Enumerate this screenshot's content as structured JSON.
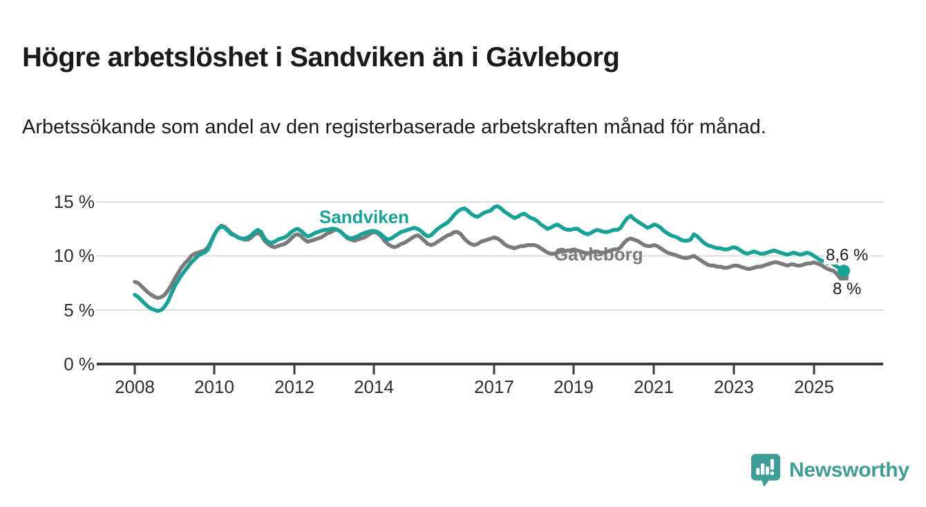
{
  "header": {
    "title": "Högre arbetslöshet i Sandviken än i Gävleborg",
    "subtitle": "Arbetssökande som andel av den registerbaserade arbetskraften månad för månad."
  },
  "chart_data": {
    "type": "line",
    "unit": "%",
    "frequency": "monthly",
    "x_start": "2008-01",
    "x_end": "2025-10",
    "ylim": [
      0,
      15
    ],
    "grid": "horizontal",
    "y_tick_labels": [
      "15 %",
      "10 %",
      "5 %",
      "0 %"
    ],
    "y_tick_values": [
      15,
      10,
      5,
      0
    ],
    "x_tick_labels": [
      "2008",
      "2010",
      "2012",
      "2014",
      "2017",
      "2019",
      "2021",
      "2023",
      "2025"
    ],
    "x_tick_values": [
      2008,
      2010,
      2012,
      2014,
      2017,
      2019,
      2021,
      2023,
      2025
    ],
    "series": [
      {
        "name": "Gävleborg",
        "color": "#7a7a7a",
        "end_label": "8 %",
        "end_value": 8.0,
        "values": [
          7.6,
          7.5,
          7.2,
          6.9,
          6.6,
          6.4,
          6.2,
          6.1,
          6.2,
          6.4,
          6.8,
          7.3,
          7.9,
          8.4,
          8.9,
          9.3,
          9.6,
          10.0,
          10.2,
          10.3,
          10.4,
          10.5,
          10.8,
          11.4,
          12.0,
          12.5,
          12.8,
          12.7,
          12.4,
          12.1,
          11.9,
          11.7,
          11.6,
          11.5,
          11.5,
          11.7,
          12.0,
          12.1,
          11.9,
          11.4,
          11.1,
          10.9,
          10.8,
          10.9,
          11.0,
          11.1,
          11.3,
          11.6,
          11.9,
          12.0,
          11.8,
          11.5,
          11.3,
          11.4,
          11.5,
          11.6,
          11.7,
          11.9,
          12.1,
          12.2,
          12.4,
          12.4,
          12.2,
          11.9,
          11.6,
          11.5,
          11.4,
          11.5,
          11.6,
          11.7,
          11.9,
          12.1,
          12.2,
          12.1,
          11.8,
          11.4,
          11.1,
          10.9,
          10.8,
          10.9,
          11.1,
          11.2,
          11.4,
          11.6,
          11.8,
          11.9,
          11.7,
          11.4,
          11.1,
          11.0,
          11.1,
          11.3,
          11.5,
          11.7,
          11.9,
          12.0,
          12.2,
          12.2,
          12.0,
          11.6,
          11.3,
          11.1,
          11.0,
          11.1,
          11.3,
          11.4,
          11.5,
          11.6,
          11.7,
          11.6,
          11.4,
          11.1,
          10.9,
          10.8,
          10.7,
          10.8,
          10.9,
          10.9,
          11.0,
          11.0,
          11.0,
          10.9,
          10.7,
          10.5,
          10.3,
          10.2,
          10.2,
          10.3,
          10.4,
          10.4,
          10.5,
          10.5,
          10.6,
          10.5,
          10.4,
          10.3,
          10.2,
          10.3,
          10.4,
          10.4,
          10.3,
          10.3,
          10.4,
          10.5,
          10.6,
          10.6,
          10.8,
          11.2,
          11.5,
          11.6,
          11.5,
          11.4,
          11.2,
          11.0,
          10.9,
          10.9,
          11.0,
          10.9,
          10.7,
          10.5,
          10.3,
          10.2,
          10.1,
          10.0,
          9.9,
          9.8,
          9.8,
          9.9,
          10.0,
          9.8,
          9.6,
          9.4,
          9.2,
          9.1,
          9.1,
          9.0,
          9.0,
          8.9,
          8.9,
          9.0,
          9.1,
          9.1,
          9.0,
          8.9,
          8.8,
          8.8,
          8.9,
          9.0,
          9.0,
          9.1,
          9.2,
          9.3,
          9.4,
          9.4,
          9.3,
          9.2,
          9.1,
          9.2,
          9.2,
          9.1,
          9.1,
          9.2,
          9.3,
          9.3,
          9.4,
          9.3,
          9.2,
          9.0,
          8.8,
          8.7,
          8.6,
          8.3,
          7.9,
          8.0
        ]
      },
      {
        "name": "Sandviken",
        "color": "#16a296",
        "end_label": "8,6 %",
        "end_value": 8.6,
        "values": [
          6.4,
          6.2,
          5.9,
          5.6,
          5.3,
          5.1,
          5.0,
          4.9,
          5.0,
          5.3,
          5.8,
          6.5,
          7.2,
          7.7,
          8.2,
          8.6,
          9.0,
          9.4,
          9.7,
          10.0,
          10.2,
          10.3,
          10.6,
          11.3,
          12.0,
          12.5,
          12.7,
          12.6,
          12.3,
          12.0,
          11.9,
          11.7,
          11.6,
          11.6,
          11.7,
          11.9,
          12.2,
          12.4,
          12.2,
          11.6,
          11.3,
          11.2,
          11.3,
          11.5,
          11.6,
          11.7,
          11.9,
          12.2,
          12.4,
          12.5,
          12.3,
          12.0,
          11.8,
          11.9,
          12.1,
          12.2,
          12.3,
          12.4,
          12.4,
          12.5,
          12.5,
          12.4,
          12.2,
          11.9,
          11.7,
          11.6,
          11.7,
          11.8,
          12.0,
          12.1,
          12.2,
          12.3,
          12.3,
          12.2,
          12.0,
          11.7,
          11.5,
          11.6,
          11.8,
          12.0,
          12.2,
          12.3,
          12.4,
          12.5,
          12.6,
          12.5,
          12.3,
          12.0,
          11.8,
          11.9,
          12.2,
          12.5,
          12.7,
          12.9,
          13.1,
          13.4,
          13.8,
          14.1,
          14.3,
          14.4,
          14.2,
          13.9,
          13.7,
          13.6,
          13.8,
          14.0,
          14.1,
          14.2,
          14.5,
          14.6,
          14.4,
          14.1,
          13.9,
          13.7,
          13.5,
          13.6,
          13.8,
          13.9,
          13.7,
          13.5,
          13.4,
          13.2,
          12.9,
          12.7,
          12.5,
          12.6,
          12.8,
          12.9,
          12.7,
          12.5,
          12.4,
          12.4,
          12.5,
          12.5,
          12.3,
          12.1,
          12.0,
          12.1,
          12.3,
          12.4,
          12.3,
          12.2,
          12.2,
          12.3,
          12.4,
          12.4,
          12.6,
          13.1,
          13.5,
          13.7,
          13.4,
          13.2,
          13.0,
          12.8,
          12.6,
          12.7,
          12.9,
          12.8,
          12.6,
          12.3,
          12.1,
          11.9,
          11.8,
          11.7,
          11.5,
          11.4,
          11.4,
          11.5,
          12.0,
          11.8,
          11.5,
          11.2,
          11.0,
          10.9,
          10.8,
          10.7,
          10.7,
          10.6,
          10.6,
          10.7,
          10.8,
          10.7,
          10.5,
          10.3,
          10.2,
          10.3,
          10.4,
          10.3,
          10.2,
          10.2,
          10.3,
          10.4,
          10.5,
          10.4,
          10.3,
          10.2,
          10.1,
          10.2,
          10.3,
          10.2,
          10.1,
          10.2,
          10.3,
          10.2,
          10.0,
          9.8,
          9.6,
          9.5,
          9.3,
          9.4,
          9.2,
          9.0,
          8.8,
          8.6
        ]
      }
    ]
  },
  "footer": {
    "brand": "Newsworthy",
    "brand_color": "#3f9d98",
    "logo_icon": "bar-chart-speech-bubble"
  }
}
